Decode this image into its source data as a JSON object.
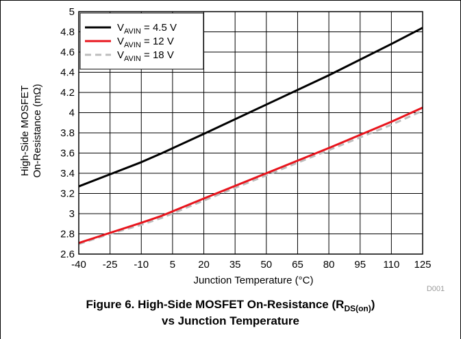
{
  "chart_data": {
    "type": "line",
    "xlabel": "Junction Temperature (°C)",
    "ylabel_line1": "High-Side MOSFET",
    "ylabel_line2": "On-Resistance (mΩ)",
    "xlim": [
      -40,
      125
    ],
    "ylim": [
      2.6,
      5
    ],
    "x_ticks": [
      -40,
      -25,
      -10,
      5,
      20,
      35,
      50,
      65,
      80,
      95,
      110,
      125
    ],
    "y_ticks": [
      2.6,
      2.8,
      3,
      3.2,
      3.4,
      3.6,
      3.8,
      4,
      4.2,
      4.4,
      4.6,
      4.8,
      5
    ],
    "y_tick_labels": [
      "2.6",
      "2.8",
      "3",
      "3.2",
      "3.4",
      "3.6",
      "3.8",
      "4",
      "4.2",
      "4.4",
      "4.6",
      "4.8",
      "5"
    ],
    "grid": true,
    "legend_position": "top-left",
    "series": [
      {
        "name": "VAVIN = 4.5 V",
        "name_main": "V",
        "name_sub": "AVIN",
        "name_rest": " = 4.5 V",
        "color": "#000000",
        "dash": "solid",
        "x": [
          -40,
          -25,
          -10,
          0,
          20,
          50,
          80,
          110,
          125
        ],
        "y": [
          3.27,
          3.39,
          3.51,
          3.6,
          3.79,
          4.08,
          4.37,
          4.68,
          4.84
        ]
      },
      {
        "name": "VAVIN = 12 V",
        "name_main": "V",
        "name_sub": "AVIN",
        "name_rest": " = 12 V",
        "color": "#e8141c",
        "dash": "solid",
        "x": [
          -40,
          -25,
          -10,
          0,
          20,
          50,
          80,
          110,
          125
        ],
        "y": [
          2.71,
          2.81,
          2.91,
          2.98,
          3.15,
          3.4,
          3.65,
          3.91,
          4.05
        ]
      },
      {
        "name": "VAVIN = 18 V",
        "name_main": "V",
        "name_sub": "AVIN",
        "name_rest": " = 18 V",
        "color": "#bdbdbd",
        "dash": "dashed",
        "x": [
          -40,
          -25,
          -10,
          0,
          20,
          50,
          80,
          110,
          125
        ],
        "y": [
          2.7,
          2.8,
          2.89,
          2.96,
          3.13,
          3.38,
          3.63,
          3.88,
          4.02
        ]
      }
    ]
  },
  "watermark": "D001",
  "caption": {
    "line1_prefix": "Figure 6. High-Side MOSFET On-Resistance (R",
    "line1_sub": "DS(on)",
    "line1_suffix": ")",
    "line2": "vs Junction Temperature"
  }
}
